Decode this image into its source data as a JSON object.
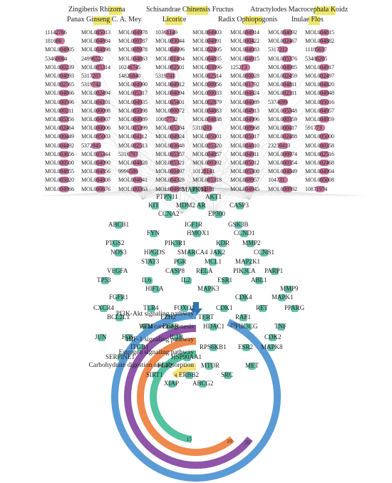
{
  "herbs": [
    {
      "name": "Zingiberis Rhizoma"
    },
    {
      "name": "Schisandrae Chinensis Fructus"
    },
    {
      "name": "Atractylodes Macrocephala Koidz"
    },
    {
      "name": "Panax Ginseng C. A. Mey"
    },
    {
      "name": "Licorice"
    },
    {
      "name": "Radix Ophiopogonis"
    },
    {
      "name": "Inulae Flos"
    }
  ],
  "compounds": [
    [
      "11142766",
      "MOL005013",
      "MOL004978",
      "10361149",
      "MOL004903",
      "MOL004914",
      "MOL004092",
      "MOL004815"
    ],
    [
      "181686",
      "MOL004884",
      "MOL000787",
      "MOL003044",
      "MOL004891",
      "MOL000422",
      "MOL002467",
      "MOL004882"
    ],
    [
      "MOL004905",
      "MOL004898",
      "MOL008978",
      "MOL004096",
      "MOL002495",
      "MOL004083",
      "5317212",
      "11185637"
    ],
    [
      "53468064",
      "24996522",
      "MOL004863",
      "MOL001484",
      "MOL004835",
      "MOL004915",
      "MOL005376",
      "53486205"
    ],
    [
      "MOL000239",
      "MOL005314",
      "10246745",
      "MOL002501",
      "MOL003896",
      "125213",
      "MOL004985",
      "MOL004917"
    ],
    [
      "MOL004093",
      "5317207",
      "14826840",
      "5319741",
      "MOL002514",
      "MOL000028",
      "MOL002459",
      "MOL002497"
    ],
    [
      "MOL002565",
      "5319742",
      "MOL004990",
      "MOL004912",
      "MOL008956",
      "MOL001792",
      "MOL004811",
      "MOL004820"
    ],
    [
      "MOL004866",
      "MOL002494",
      "MOL005317",
      "MOL004094",
      "MOL000033",
      "MOL004824",
      "MOL002311",
      "MOL004948"
    ],
    [
      "MOL000596",
      "MOL004101",
      "MOL004935",
      "MOL005401",
      "MOL002879",
      "MOL004089",
      "5374699",
      "MOL005016"
    ],
    [
      "MOL000211",
      "MOL000098",
      "MOL003398",
      "MOL000072",
      "MOL004883",
      "MOL004913",
      "MOL005348",
      "MOL004957"
    ],
    [
      "MOL005356",
      "MOL004907",
      "MOL004989",
      "10087732",
      "MOL004838",
      "MOL004996",
      "MOL000359",
      "MOL004959"
    ],
    [
      "MOL002464",
      "MOL000006",
      "MOL005399",
      "MOL005384",
      "5318201",
      "MOL008968",
      "MOL000417",
      "591773"
    ],
    [
      "MOL000449",
      "MOL005003",
      "MOL004112",
      "MOL004924",
      "MOL005001",
      "MOL005017",
      "MOL002488",
      "MOL005000"
    ],
    [
      "MOL004492",
      "5372945",
      "MOL002513",
      "MOL003648",
      "MOL005320",
      "MOL004810",
      "23259413",
      "MOL000358"
    ],
    [
      "MOL003656",
      "MOL005344",
      "5316797",
      "MOL005357",
      "MOL004857",
      "MOL004911",
      "MOL008974",
      "MOL002516"
    ],
    [
      "MOL000500",
      "MOL004090",
      "MOL004828",
      "MOL005321",
      "MOL000392",
      "MOL005012",
      "MOL000354",
      "MOL002468"
    ],
    [
      "MOL004855",
      "MOL004856",
      "9996586",
      "MOL000497",
      "10128141",
      "MOL005308",
      "MOL004849",
      "MOL004904"
    ],
    [
      "MOL005020",
      "MOL004808",
      "MOL004841",
      "MOL004328",
      "MOL005318",
      "MOL008957",
      "104731",
      "MOL005008"
    ],
    [
      "MOL004966",
      "MOL000676",
      "MOL000363",
      "MOL004885",
      "11003181",
      "MOL004945",
      "MOL008992",
      "10871974"
    ]
  ],
  "genes": [
    {
      "label": "MAPK14"
    },
    {
      "label": "PTPN11"
    },
    {
      "label": "AKT1"
    },
    {
      "label": "KIT"
    },
    {
      "label": "MDM2"
    },
    {
      "label": "AR"
    },
    {
      "label": "CASP3"
    },
    {
      "label": "CCNA2"
    },
    {
      "label": "EP300"
    },
    {
      "label": "ABCB1"
    },
    {
      "label": "IGF1R"
    },
    {
      "label": "GSK3B"
    },
    {
      "label": "FYN"
    },
    {
      "label": "HMOX1"
    },
    {
      "label": "CCND1"
    },
    {
      "label": "PTGS2"
    },
    {
      "label": "PIK3R1"
    },
    {
      "label": "KDR"
    },
    {
      "label": "MMP2"
    },
    {
      "label": "NOS3"
    },
    {
      "label": "HPGDS"
    },
    {
      "label": "SMARCA4"
    },
    {
      "label": "JAK2"
    },
    {
      "label": "CCNB1"
    },
    {
      "label": "STAT3"
    },
    {
      "label": "PGR"
    },
    {
      "label": "MCL1"
    },
    {
      "label": "MAP2K1"
    },
    {
      "label": "VEGFA"
    },
    {
      "label": "CASP8"
    },
    {
      "label": "RELA"
    },
    {
      "label": "PIK3CA"
    },
    {
      "label": "PARP1"
    },
    {
      "label": "TP53"
    },
    {
      "label": "IL6"
    },
    {
      "label": "IL2"
    },
    {
      "label": "ESR1"
    },
    {
      "label": "ABL1"
    },
    {
      "label": "HIF1A"
    },
    {
      "label": "MAPK3"
    },
    {
      "label": "MMP9"
    },
    {
      "label": "FGFR1"
    },
    {
      "label": "CDK4"
    },
    {
      "label": "MAPK1"
    },
    {
      "label": "CXCR4"
    },
    {
      "label": "TLR4"
    },
    {
      "label": "FOXO1"
    },
    {
      "label": "CDK1"
    },
    {
      "label": "RET"
    },
    {
      "label": "PPARG"
    },
    {
      "label": "BCL2L1"
    },
    {
      "label": "EZH2"
    },
    {
      "label": "TERT"
    },
    {
      "label": "RAF1"
    },
    {
      "label": "ATM"
    },
    {
      "label": "EGFR"
    },
    {
      "label": "HDAC1"
    },
    {
      "label": "PIK3CG"
    },
    {
      "label": "TNF"
    },
    {
      "label": "JUN"
    },
    {
      "label": "FOS"
    },
    {
      "label": "IL1B"
    },
    {
      "label": "CDK2"
    },
    {
      "label": "ITGB1"
    },
    {
      "label": "RPS6KB1"
    },
    {
      "label": "ESR2"
    },
    {
      "label": "MAPK8"
    },
    {
      "label": "SERPINE1"
    },
    {
      "label": "HSP90AA1"
    },
    {
      "label": "FGF2"
    },
    {
      "label": "MTOR"
    },
    {
      "label": "MET"
    },
    {
      "label": "SIRT1"
    },
    {
      "label": "ERBB2"
    },
    {
      "label": "SRC"
    },
    {
      "label": "XIAP"
    },
    {
      "label": "ABCG2"
    }
  ],
  "arrow_color": "#2e75b6",
  "pathways": [
    {
      "name": "PI3K-Akt signaling pathway",
      "count": 29,
      "color": "#5b9bd5"
    },
    {
      "name": "Viral carcinogenesis",
      "count": 20,
      "color": "#8e55a8"
    },
    {
      "name": "HIF-1 signaling pathway",
      "count": 19,
      "color": "#f0894d"
    },
    {
      "name": "Estrogen signaling pathway",
      "count": 15,
      "color": "#55c2a0"
    },
    {
      "name": "Carbohydrate digestion and absorption",
      "count": 4,
      "color": "#f5e27a"
    }
  ],
  "colors": {
    "compound": "#c36a93",
    "gene": "#5fbfa8",
    "herb_highlight": "#f0e76a",
    "edge": "#b8b8b8"
  }
}
